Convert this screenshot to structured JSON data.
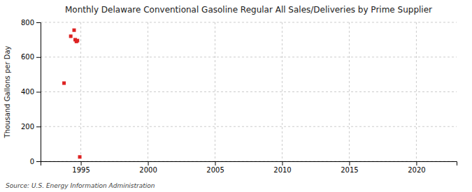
{
  "chart_data": {
    "type": "scatter",
    "title": "Monthly Delaware Conventional Gasoline Regular All Sales/Deliveries by Prime Supplier",
    "ylabel": "Thousand Gallons per Day",
    "annotations": [
      "Source: U.S. Energy Information Administration"
    ],
    "x": [
      1993.75,
      1994.25,
      1994.5,
      1994.58,
      1994.67,
      1994.75,
      1994.92
    ],
    "values": [
      450,
      720,
      755,
      700,
      690,
      695,
      25
    ],
    "color": "#dd2222",
    "marker": "square",
    "xlim": [
      1992,
      2023
    ],
    "ylim": [
      0,
      800
    ],
    "xticks": [
      1995,
      2000,
      2005,
      2010,
      2015,
      2020
    ],
    "yticks": [
      0,
      200,
      400,
      600,
      800
    ],
    "grid": true
  }
}
